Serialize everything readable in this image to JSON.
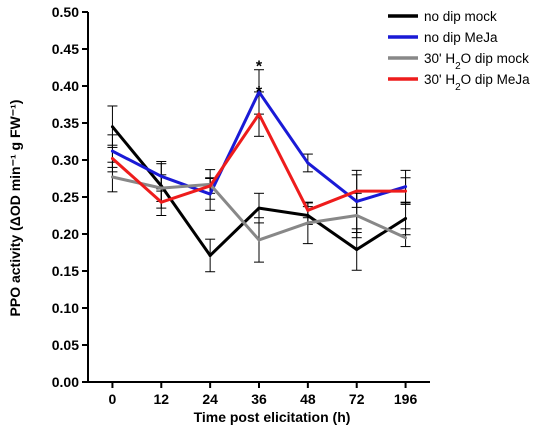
{
  "chart_data": {
    "type": "line",
    "xlabel": "Time post elicitation (h)",
    "ylabel": "PPO activity (ΔOD min⁻¹ g FW⁻¹)",
    "ylim": [
      0,
      0.5
    ],
    "yticks": [
      "0.00",
      "0.05",
      "0.10",
      "0.15",
      "0.20",
      "0.25",
      "0.30",
      "0.35",
      "0.40",
      "0.45",
      "0.50"
    ],
    "categories": [
      "0",
      "12",
      "24",
      "36",
      "48",
      "72",
      "196"
    ],
    "legend_position": "top-right",
    "series": [
      {
        "name": "no dip mock",
        "color": "#000000",
        "values": [
          0.345,
          0.265,
          0.171,
          0.235,
          0.225,
          0.179,
          0.221
        ],
        "error": [
          0.028,
          0.03,
          0.022,
          0.02,
          0.012,
          0.028,
          0.022
        ]
      },
      {
        "name": "no dip MeJa",
        "color": "#1a1ad6",
        "values": [
          0.312,
          0.278,
          0.254,
          0.392,
          0.296,
          0.244,
          0.264
        ],
        "error": [
          0.022,
          0.02,
          0.022,
          0.03,
          0.012,
          0.042,
          0.022
        ]
      },
      {
        "name": "30' H2O dip mock",
        "label_parts": [
          "30' H",
          "2",
          "O dip mock"
        ],
        "color": "#888888",
        "values": [
          0.277,
          0.262,
          0.267,
          0.192,
          0.215,
          0.225,
          0.195
        ],
        "error": [
          0.02,
          0.018,
          0.02,
          0.03,
          0.028,
          0.03,
          0.012
        ]
      },
      {
        "name": "30' H2O dip MeJa",
        "label_parts": [
          "30' H",
          "2",
          "O dip MeJa"
        ],
        "color": "#ee1c1c",
        "values": [
          0.302,
          0.243,
          0.265,
          0.362,
          0.232,
          0.258,
          0.258
        ],
        "error": [
          0.018,
          0.018,
          0.01,
          0.03,
          0.01,
          0.022,
          0.018
        ]
      }
    ],
    "annotations": [
      {
        "text": "*",
        "x": "36",
        "y": 0.428
      },
      {
        "text": "*",
        "x": "36",
        "y": 0.393
      }
    ]
  }
}
